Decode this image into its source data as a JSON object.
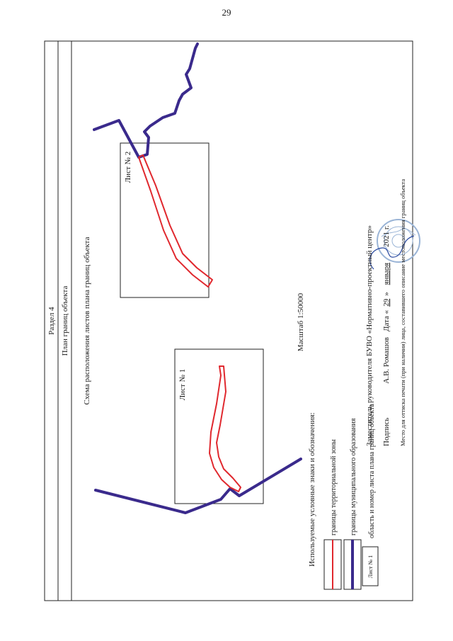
{
  "page_number": "29",
  "section_title": "Раздел 4",
  "plan_title": "План границ объекта",
  "scheme_title": "Схема расположения листов плана границ объекта",
  "sheets": [
    {
      "label": "Лист № 1"
    },
    {
      "label": "Лист № 2"
    }
  ],
  "scale": "Масштаб 1:50000",
  "legend": {
    "heading": "Используемые условные знаки и обозначения:",
    "items": [
      {
        "label": "границы территориальной зоны",
        "color": "#e0282e"
      },
      {
        "label": "границы муниципального образования",
        "color": "#3a2a8c"
      },
      {
        "label": "область и номер листа плана границ объекта",
        "sample_text": "Лист № 1"
      }
    ]
  },
  "signature_block": {
    "line1": "Заместитель руководителя БУВО «Нормативно-проектный центр»",
    "line2_sign": "Подпись",
    "line2_name": "А.В. Ромашов",
    "line2_date_prefix": "Дата «",
    "line2_day": "29",
    "line2_mid": "»",
    "line2_month": "января",
    "line2_year": "2021 г.",
    "line3": "Место для оттиска печати (при наличии) лица, составившего описание местоположения границ объекта"
  },
  "colors": {
    "territorial_zone": "#e0282e",
    "municipal_boundary": "#3a2a8c",
    "frame": "#222222"
  }
}
